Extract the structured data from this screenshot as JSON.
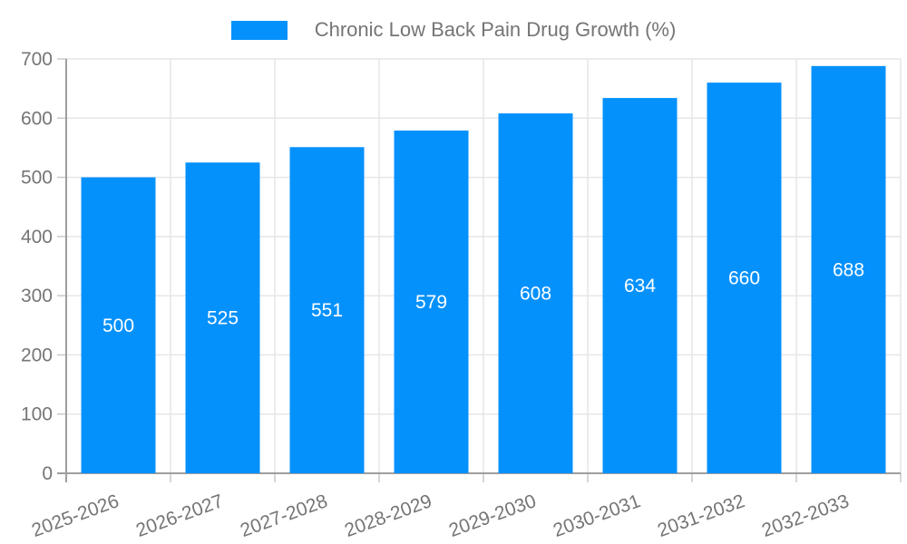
{
  "legend": {
    "label": "Chronic Low Back Pain Drug Growth (%)"
  },
  "chart_data": {
    "type": "bar",
    "title": "Chronic Low Back Pain Drug Growth (%)",
    "categories": [
      "2025-2026",
      "2026-2027",
      "2027-2028",
      "2028-2029",
      "2029-2030",
      "2030-2031",
      "2031-2032",
      "2032-2033"
    ],
    "values": [
      500,
      525,
      551,
      579,
      608,
      634,
      660,
      688
    ],
    "xlabel": "",
    "ylabel": "",
    "ylim": [
      0,
      700
    ],
    "ytick_step": 100,
    "ytick_labels": [
      "0",
      "100",
      "200",
      "300",
      "400",
      "500",
      "600",
      "700"
    ],
    "grid": true,
    "legend_position": "top",
    "value_label_position": "inside-center",
    "x_label_rotation_deg": -20,
    "colors": {
      "bar": "#0591FC",
      "value_label": "#ffffff",
      "axis_text": "#757575",
      "grid": "#e6e6e6",
      "tick": "#c8c8c8",
      "axis_line": "#9e9e9e",
      "background": "#ffffff"
    }
  }
}
